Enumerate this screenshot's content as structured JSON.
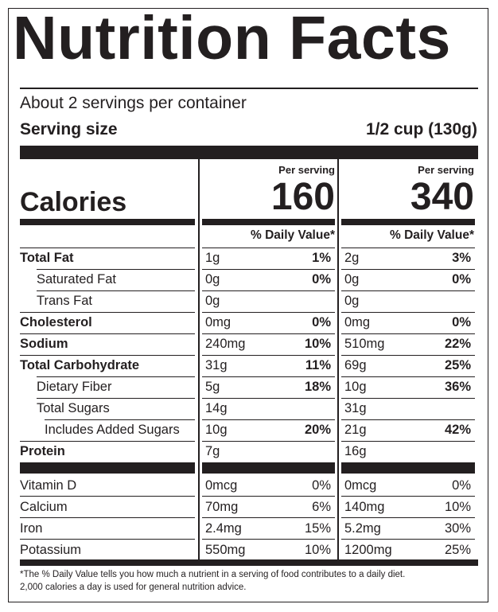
{
  "title": "Nutrition Facts",
  "servings": "About 2 servings per container",
  "serving_size_label": "Serving size",
  "serving_size_value": "1/2 cup (130g)",
  "per_serving_label": "Per serving",
  "calories_label": "Calories",
  "calories": [
    "160",
    "340"
  ],
  "dv_header": "% Daily Value*",
  "nutrients": [
    {
      "name": "Total Fat",
      "bold": true,
      "indent": 0,
      "c1_amount": "1g",
      "c1_dv": "1%",
      "c2_amount": "2g",
      "c2_dv": "3%"
    },
    {
      "name": "Saturated Fat",
      "bold": false,
      "indent": 1,
      "c1_amount": "0g",
      "c1_dv": "0%",
      "c2_amount": "0g",
      "c2_dv": "0%"
    },
    {
      "name": "Trans Fat",
      "bold": false,
      "indent": 1,
      "c1_amount": "0g",
      "c1_dv": "",
      "c2_amount": "0g",
      "c2_dv": ""
    },
    {
      "name": "Cholesterol",
      "bold": true,
      "indent": 0,
      "c1_amount": "0mg",
      "c1_dv": "0%",
      "c2_amount": "0mg",
      "c2_dv": "0%"
    },
    {
      "name": "Sodium",
      "bold": true,
      "indent": 0,
      "c1_amount": "240mg",
      "c1_dv": "10%",
      "c2_amount": "510mg",
      "c2_dv": "22%"
    },
    {
      "name": "Total Carbohydrate",
      "bold": true,
      "indent": 0,
      "c1_amount": "31g",
      "c1_dv": "11%",
      "c2_amount": "69g",
      "c2_dv": "25%"
    },
    {
      "name": "Dietary Fiber",
      "bold": false,
      "indent": 1,
      "c1_amount": "5g",
      "c1_dv": "18%",
      "c2_amount": "10g",
      "c2_dv": "36%"
    },
    {
      "name": "Total Sugars",
      "bold": false,
      "indent": 1,
      "c1_amount": "14g",
      "c1_dv": "",
      "c2_amount": "31g",
      "c2_dv": ""
    },
    {
      "name": "Includes Added Sugars",
      "bold": false,
      "indent": 2,
      "c1_amount": "10g",
      "c1_dv": "20%",
      "c2_amount": "21g",
      "c2_dv": "42%"
    },
    {
      "name": "Protein",
      "bold": true,
      "indent": 0,
      "c1_amount": "7g",
      "c1_dv": "",
      "c2_amount": "16g",
      "c2_dv": ""
    }
  ],
  "vitamins": [
    {
      "name": "Vitamin D",
      "c1_amount": "0mcg",
      "c1_dv": "0%",
      "c2_amount": "0mcg",
      "c2_dv": "0%"
    },
    {
      "name": "Calcium",
      "c1_amount": "70mg",
      "c1_dv": "6%",
      "c2_amount": "140mg",
      "c2_dv": "10%"
    },
    {
      "name": "Iron",
      "c1_amount": "2.4mg",
      "c1_dv": "15%",
      "c2_amount": "5.2mg",
      "c2_dv": "30%"
    },
    {
      "name": "Potassium",
      "c1_amount": "550mg",
      "c1_dv": "10%",
      "c2_amount": "1200mg",
      "c2_dv": "25%"
    }
  ],
  "footnote": [
    "*The % Daily Value tells you how much a nutrient in a serving of food contributes to a daily diet.",
    "2,000 calories a day is used for general nutrition advice."
  ]
}
